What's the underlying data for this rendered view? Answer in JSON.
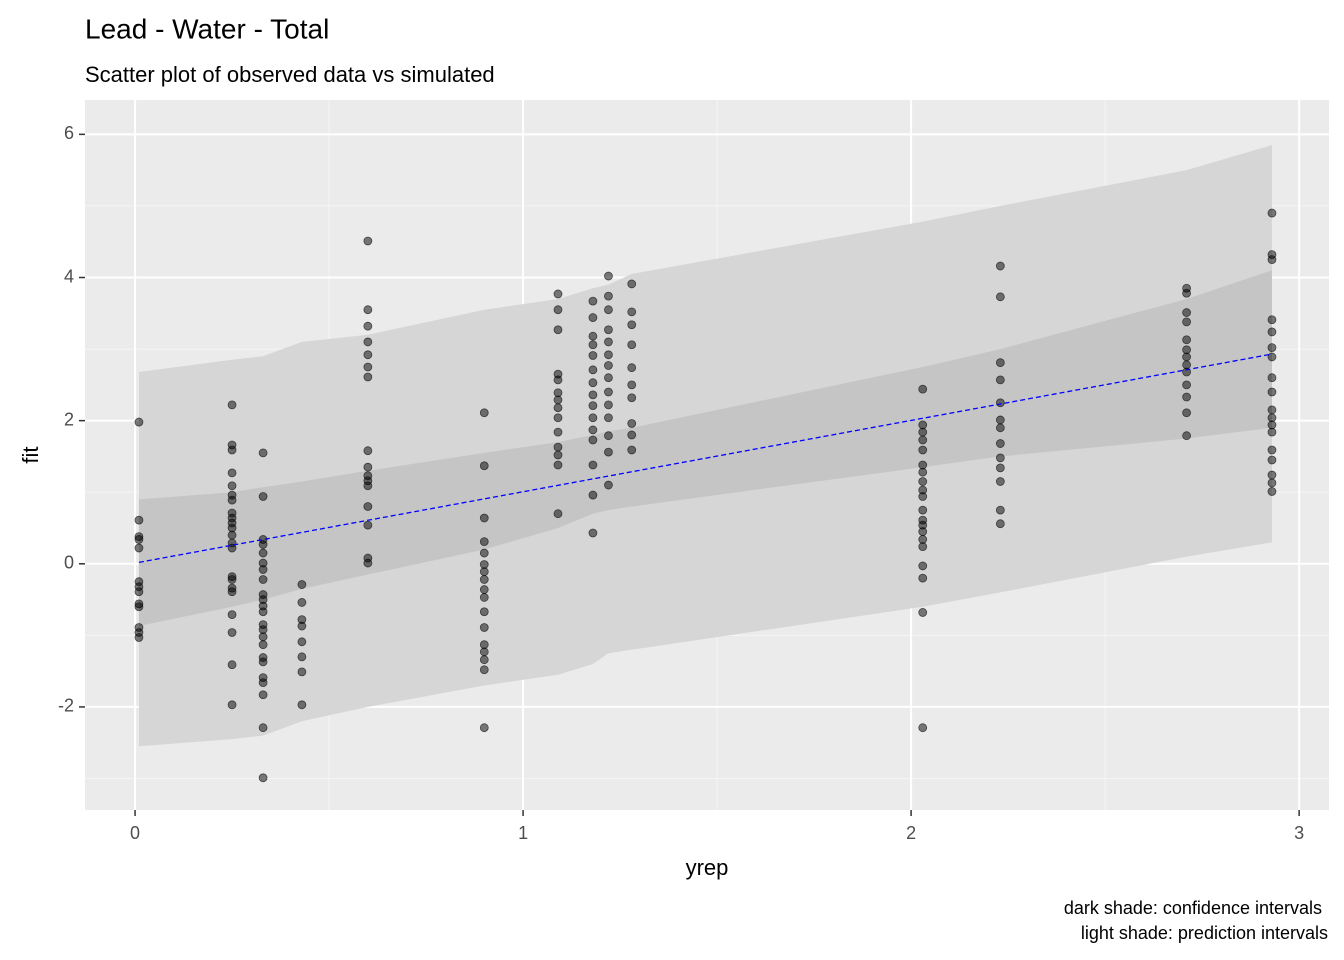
{
  "chart_data": {
    "type": "scatter",
    "title": "Lead - Water - Total",
    "subtitle": "Scatter plot of observed data vs simulated",
    "xlabel": "yrep",
    "ylabel": "fit",
    "caption": [
      "dark shade: confidence intervals",
      "light shade: prediction intervals"
    ],
    "xlim": [
      -0.129,
      3.077
    ],
    "ylim": [
      -3.44,
      6.48
    ],
    "xticks": [
      0,
      1,
      2,
      3
    ],
    "yticks": [
      -2,
      0,
      2,
      4,
      6
    ],
    "xminor": [
      0.5,
      1.5,
      2.5
    ],
    "yminor": [
      -3,
      -1,
      1,
      3,
      5
    ],
    "grid": true,
    "point_color": "#000000",
    "line_color": "#0000ff",
    "prediction_color": "#d6d6d6",
    "confidence_color": "#c5c5c5",
    "ribbon_x": [
      0.01,
      0.25,
      0.33,
      0.43,
      0.6,
      0.9,
      1.09,
      1.18,
      1.22,
      1.28,
      2.03,
      2.23,
      2.71,
      2.93
    ],
    "prediction_upper": [
      2.68,
      2.85,
      2.9,
      3.1,
      3.2,
      3.55,
      3.7,
      3.85,
      3.9,
      4.05,
      4.78,
      5.0,
      5.5,
      5.85
    ],
    "prediction_lower": [
      -2.55,
      -2.45,
      -2.4,
      -2.2,
      -2.0,
      -1.7,
      -1.55,
      -1.4,
      -1.25,
      -1.2,
      -0.6,
      -0.4,
      0.1,
      0.3
    ],
    "confidence_upper": [
      0.9,
      1.0,
      1.07,
      1.15,
      1.3,
      1.55,
      1.7,
      1.8,
      1.85,
      1.9,
      2.75,
      3.0,
      3.7,
      4.1
    ],
    "confidence_lower": [
      -0.87,
      -0.6,
      -0.5,
      -0.35,
      -0.15,
      0.2,
      0.5,
      0.7,
      0.75,
      0.8,
      1.35,
      1.5,
      1.75,
      1.9
    ],
    "fit_line": {
      "x": [
        0.01,
        2.93
      ],
      "y": [
        0.02,
        2.93
      ]
    },
    "groups": [
      {
        "x": 0.01,
        "y": [
          1.98,
          0.61,
          0.38,
          0.34,
          0.22,
          -0.25,
          -0.32,
          -0.39,
          -0.56,
          -0.6,
          -0.89,
          -0.96,
          -1.03
        ]
      },
      {
        "x": 0.25,
        "y": [
          2.22,
          1.66,
          1.59,
          1.27,
          1.09,
          0.96,
          0.89,
          0.71,
          0.64,
          0.57,
          0.5,
          0.4,
          0.29,
          0.22,
          -0.18,
          -0.22,
          -0.34,
          -0.39,
          -0.71,
          -0.96,
          -1.41,
          -1.97
        ]
      },
      {
        "x": 0.33,
        "y": [
          1.55,
          0.94,
          0.34,
          0.27,
          0.15,
          0.01,
          -0.08,
          -0.22,
          -0.43,
          -0.5,
          -0.59,
          -0.67,
          -0.85,
          -0.92,
          -1.02,
          -1.13,
          -1.31,
          -1.37,
          -1.59,
          -1.66,
          -1.83,
          -2.29,
          -2.99
        ]
      },
      {
        "x": 0.43,
        "y": [
          -0.29,
          -0.54,
          -0.78,
          -0.87,
          -1.09,
          -1.3,
          -1.51,
          -1.97
        ]
      },
      {
        "x": 0.6,
        "y": [
          4.51,
          3.55,
          3.32,
          3.1,
          2.92,
          2.75,
          2.61,
          1.58,
          1.35,
          1.23,
          1.16,
          1.09,
          0.8,
          0.54,
          0.08,
          0.01
        ]
      },
      {
        "x": 0.9,
        "y": [
          2.11,
          1.37,
          0.64,
          0.31,
          0.15,
          -0.01,
          -0.11,
          -0.22,
          -0.36,
          -0.47,
          -0.67,
          -0.89,
          -1.13,
          -1.23,
          -1.34,
          -1.48,
          -2.29
        ]
      },
      {
        "x": 1.09,
        "y": [
          3.77,
          3.55,
          3.27,
          2.65,
          2.57,
          2.39,
          2.29,
          2.18,
          2.04,
          1.84,
          1.63,
          1.52,
          1.38,
          0.7
        ]
      },
      {
        "x": 1.18,
        "y": [
          3.67,
          3.44,
          3.18,
          3.06,
          2.91,
          2.71,
          2.53,
          2.36,
          2.21,
          2.04,
          1.87,
          1.73,
          1.38,
          0.96,
          0.43
        ]
      },
      {
        "x": 1.22,
        "y": [
          4.02,
          3.74,
          3.55,
          3.27,
          3.1,
          2.92,
          2.77,
          2.6,
          2.4,
          2.22,
          2.04,
          1.79,
          1.56,
          1.1
        ]
      },
      {
        "x": 1.28,
        "y": [
          3.91,
          3.52,
          3.34,
          3.06,
          2.74,
          2.5,
          2.32,
          1.96,
          1.8,
          1.59
        ]
      },
      {
        "x": 2.03,
        "y": [
          2.44,
          1.94,
          1.84,
          1.73,
          1.59,
          1.38,
          1.28,
          1.15,
          1.03,
          0.94,
          0.75,
          0.61,
          0.54,
          0.45,
          0.34,
          0.24,
          -0.03,
          -0.2,
          -0.68,
          -2.29
        ]
      },
      {
        "x": 2.23,
        "y": [
          4.16,
          3.73,
          2.81,
          2.57,
          2.25,
          2.01,
          1.9,
          1.68,
          1.48,
          1.34,
          1.15,
          0.75,
          0.56
        ]
      },
      {
        "x": 2.71,
        "y": [
          3.85,
          3.78,
          3.51,
          3.38,
          3.13,
          2.99,
          2.89,
          2.78,
          2.68,
          2.5,
          2.33,
          2.11,
          1.79
        ]
      },
      {
        "x": 2.93,
        "y": [
          4.9,
          4.32,
          4.25,
          3.41,
          3.24,
          3.02,
          2.89,
          2.6,
          2.4,
          2.15,
          2.04,
          1.94,
          1.84,
          1.59,
          1.45,
          1.24,
          1.13,
          1.01
        ]
      }
    ]
  }
}
